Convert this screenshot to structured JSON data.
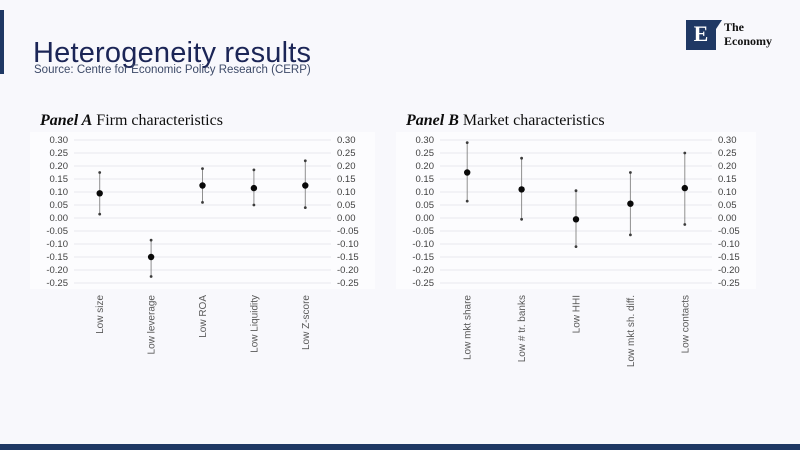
{
  "header": {
    "title": "Heterogeneity results",
    "source": "Source: Centre for Economic Policy Research (CERP)"
  },
  "logo": {
    "letter": "E",
    "line1": "The",
    "line2": "Economy"
  },
  "colors": {
    "accent_navy": "#1f3864",
    "title_navy": "#1b2556",
    "source_text": "#3d4a68",
    "page_bg": "#f8f8fc",
    "chart_bg": "#fcfcfe",
    "grid": "#e8e8ee",
    "tick_text": "#3f3f3f",
    "category_text": "#595959",
    "marker": "#0a0a0a",
    "whisker": "#8f8f8f",
    "whisker_cap": "#3c3c3c"
  },
  "chart_data": [
    {
      "type": "scatter",
      "panel_label": "Panel A",
      "panel_title": " Firm characteristics",
      "categories": [
        "Low size",
        "Low leverage",
        "Low ROA",
        "Low Liquidity",
        "Low Z-score"
      ],
      "series": [
        {
          "name": "point estimate",
          "values": [
            0.095,
            -0.15,
            0.125,
            0.115,
            0.125
          ]
        },
        {
          "name": "ci_upper",
          "values": [
            0.175,
            -0.085,
            0.19,
            0.185,
            0.22
          ]
        },
        {
          "name": "ci_lower",
          "values": [
            0.015,
            -0.225,
            0.06,
            0.05,
            0.04
          ]
        }
      ],
      "ylim": [
        -0.25,
        0.3
      ],
      "ytick_step": 0.05,
      "yticks": [
        "0.30",
        "0.25",
        "0.20",
        "0.15",
        "0.10",
        "0.05",
        "0.00",
        "-0.05",
        "-0.10",
        "-0.15",
        "-0.20",
        "-0.25"
      ],
      "grid": true,
      "legend": "none",
      "yticks_both_sides": true,
      "xlabel": "",
      "ylabel": ""
    },
    {
      "type": "scatter",
      "panel_label": "Panel B",
      "panel_title": " Market characteristics",
      "categories": [
        "Low mkt share",
        "Low # tr. banks",
        "Low HHI",
        "Low mkt sh. diff.",
        "Low contacts"
      ],
      "series": [
        {
          "name": "point estimate",
          "values": [
            0.175,
            0.11,
            -0.005,
            0.055,
            0.115
          ]
        },
        {
          "name": "ci_upper",
          "values": [
            0.29,
            0.23,
            0.105,
            0.175,
            0.25
          ]
        },
        {
          "name": "ci_lower",
          "values": [
            0.065,
            -0.005,
            -0.11,
            -0.065,
            -0.025
          ]
        }
      ],
      "ylim": [
        -0.25,
        0.3
      ],
      "ytick_step": 0.05,
      "yticks": [
        "0.30",
        "0.25",
        "0.20",
        "0.15",
        "0.10",
        "0.05",
        "0.00",
        "-0.05",
        "-0.10",
        "-0.15",
        "-0.20",
        "-0.25"
      ],
      "grid": true,
      "legend": "none",
      "yticks_both_sides": true,
      "xlabel": "",
      "ylabel": ""
    }
  ]
}
